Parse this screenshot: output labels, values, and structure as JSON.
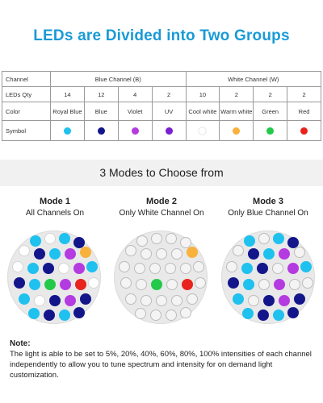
{
  "title": "LEDs are Divided into Two Groups",
  "colors": {
    "title": "#1a9ad6",
    "royal_blue": "#1fc1ee",
    "blue": "#13168a",
    "violet": "#b43be0",
    "uv": "#7a1fd1",
    "cool_white": "#ffffff",
    "warm_white": "#f8b13a",
    "green": "#23c94a",
    "red": "#e8231e",
    "off": "#f4f4f4"
  },
  "table": {
    "row_labels": {
      "channel": "Channel",
      "qty": "LEDs Qty",
      "color": "Color",
      "symbol": "Symbol"
    },
    "groups": [
      {
        "label": "Blue Channel (B)"
      },
      {
        "label": "White Channel (W)"
      }
    ],
    "columns": [
      {
        "qty": "14",
        "color": "Royal Blue",
        "swatch": "royal_blue"
      },
      {
        "qty": "12",
        "color": "Blue",
        "swatch": "blue"
      },
      {
        "qty": "4",
        "color": "Violet",
        "swatch": "violet"
      },
      {
        "qty": "2",
        "color": "UV",
        "swatch": "uv"
      },
      {
        "qty": "10",
        "color": "Cool white",
        "swatch": "cool_white"
      },
      {
        "qty": "2",
        "color": "Warm white",
        "swatch": "warm_white"
      },
      {
        "qty": "2",
        "color": "Green",
        "swatch": "green"
      },
      {
        "qty": "2",
        "color": "Red",
        "swatch": "red"
      }
    ]
  },
  "modes_heading": "3 Modes to Choose from",
  "modes": [
    {
      "title": "Mode 1",
      "subtitle": "All Channels On",
      "visible_leds": [
        "royal_blue",
        "cool_white",
        "royal_blue",
        "blue",
        "cool_white",
        "blue",
        "royal_blue",
        "violet",
        "warm_white",
        "cool_white",
        "royal_blue",
        "blue",
        "cool_white",
        "violet",
        "royal_blue",
        "blue",
        "royal_blue",
        "green",
        "violet",
        "red",
        "cool_white",
        "royal_blue",
        "cool_white",
        "blue",
        "violet",
        "blue",
        "royal_blue",
        "blue",
        "royal_blue",
        "blue"
      ]
    },
    {
      "title": "Mode 2",
      "subtitle": "Only White Channel On",
      "visible_leds": [
        "off",
        "off",
        "off",
        "off",
        "off",
        "off",
        "off",
        "off",
        "warm_white",
        "off",
        "off",
        "off",
        "off",
        "off",
        "off",
        "off",
        "off",
        "green",
        "off",
        "red",
        "off",
        "off",
        "off",
        "off",
        "off",
        "off",
        "off",
        "off",
        "off",
        "off"
      ]
    },
    {
      "title": "Mode 3",
      "subtitle": "Only Blue Channel On",
      "visible_leds": [
        "royal_blue",
        "off",
        "royal_blue",
        "blue",
        "off",
        "blue",
        "royal_blue",
        "violet",
        "off",
        "off",
        "royal_blue",
        "blue",
        "off",
        "violet",
        "royal_blue",
        "blue",
        "royal_blue",
        "off",
        "violet",
        "off",
        "off",
        "royal_blue",
        "off",
        "blue",
        "violet",
        "blue",
        "royal_blue",
        "blue",
        "royal_blue",
        "blue"
      ]
    }
  ],
  "note": {
    "title": "Note:",
    "text": "The light is able to be set to 5%, 20%, 40%, 60%, 80%, 100% intensities of each channel independently to allow you to tune spectrum and intensity for on demand light customization."
  }
}
